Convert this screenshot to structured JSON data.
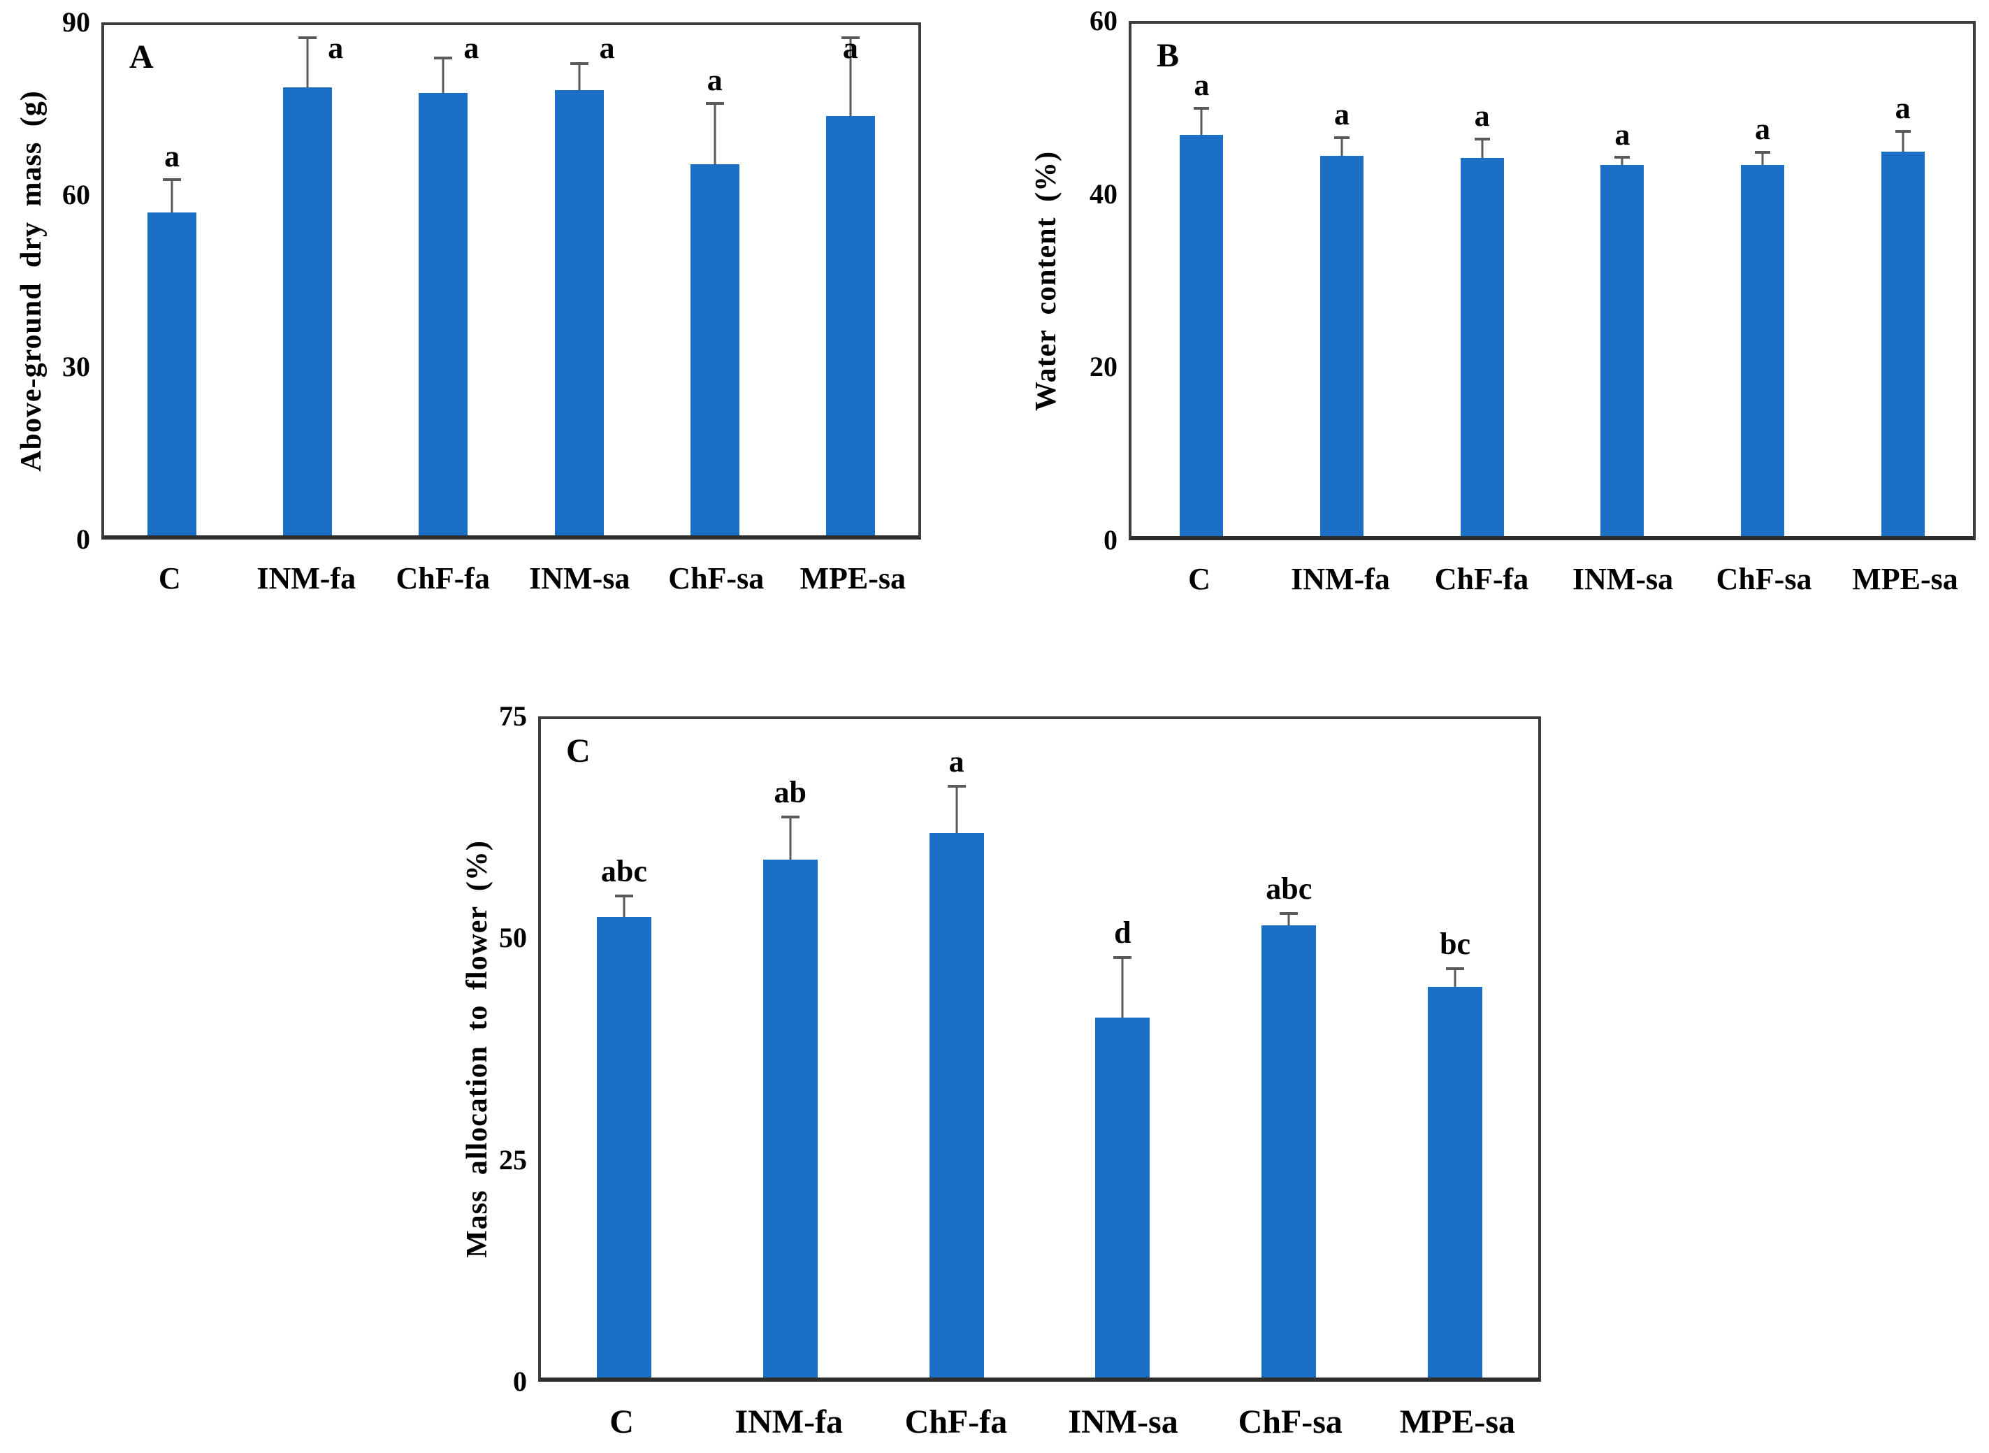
{
  "figure": {
    "panel_labels": [
      "A",
      "B",
      "C"
    ],
    "categories": [
      "C",
      "INM-fa",
      "ChF-fa",
      "INM-sa",
      "ChF-sa",
      "MPE-sa"
    ]
  },
  "colors": {
    "bar": "#1b70c6",
    "error_bar": "#5a5a5a",
    "frame": "#3d3d3d",
    "text": "#000000"
  },
  "chart_data": [
    {
      "type": "bar",
      "panel": "A",
      "title": "",
      "ylabel": "Above-ground dry mass (g)",
      "xlabel": "",
      "ylim": [
        0,
        90
      ],
      "yticks": [
        0,
        30,
        60,
        90
      ],
      "grid": false,
      "legend": "none",
      "categories": [
        "C",
        "INM-fa",
        "ChF-fa",
        "INM-sa",
        "ChF-sa",
        "MPE-sa"
      ],
      "values": [
        57,
        79,
        78,
        78.5,
        65.5,
        74
      ],
      "errors": [
        6,
        9,
        6.5,
        5,
        11,
        14
      ],
      "sig_letters": [
        "a",
        "a",
        "a",
        "a",
        "a",
        "a"
      ]
    },
    {
      "type": "bar",
      "panel": "B",
      "title": "",
      "ylabel": "Water content (%)",
      "xlabel": "",
      "ylim": [
        0,
        60
      ],
      "yticks": [
        0,
        20,
        40,
        60
      ],
      "grid": false,
      "legend": "none",
      "categories": [
        "C",
        "INM-fa",
        "ChF-fa",
        "INM-sa",
        "ChF-sa",
        "MPE-sa"
      ],
      "values": [
        47,
        44.5,
        44.3,
        43.5,
        43.5,
        45
      ],
      "errors": [
        3.3,
        2.3,
        2.4,
        1,
        1.6,
        2.6
      ],
      "sig_letters": [
        "a",
        "a",
        "a",
        "a",
        "a",
        "a"
      ]
    },
    {
      "type": "bar",
      "panel": "C",
      "title": "",
      "ylabel": "Mass allocation to flower (%)",
      "xlabel": "",
      "ylim": [
        0,
        75
      ],
      "yticks": [
        0,
        25,
        50,
        75
      ],
      "grid": false,
      "legend": "none",
      "categories": [
        "C",
        "INM-fa",
        "ChF-fa",
        "INM-sa",
        "ChF-sa",
        "MPE-sa"
      ],
      "values": [
        52.5,
        59,
        62,
        41,
        51.5,
        44.5
      ],
      "errors": [
        2.5,
        5,
        5.5,
        7,
        1.5,
        2.2
      ],
      "sig_letters": [
        "abc",
        "ab",
        "a",
        "d",
        "abc",
        "bc"
      ]
    }
  ]
}
